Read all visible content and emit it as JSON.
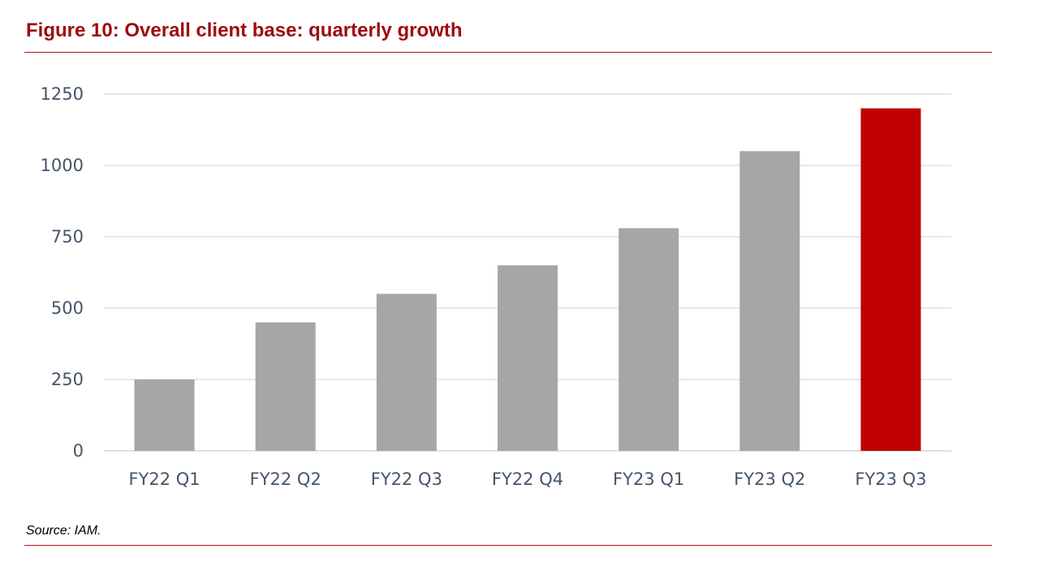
{
  "title": "Figure 10: Overall client base: quarterly growth",
  "source": "Source: IAM.",
  "colors": {
    "title": "#9e0b0f",
    "rule": "#b5121b",
    "bar_default": "#a6a6a6",
    "bar_highlight": "#c00000",
    "grid": "#d9d9d9",
    "tick_text": "#44546a"
  },
  "chart_data": {
    "type": "bar",
    "categories": [
      "FY22 Q1",
      "FY22 Q2",
      "FY22 Q3",
      "FY22 Q4",
      "FY23 Q1",
      "FY23 Q2",
      "FY23 Q3"
    ],
    "values": [
      250,
      450,
      550,
      650,
      780,
      1050,
      1200
    ],
    "highlight_index": 6,
    "title": "",
    "xlabel": "",
    "ylabel": "",
    "ylim": [
      0,
      1250
    ],
    "yticks": [
      0,
      250,
      500,
      750,
      1000,
      1250
    ],
    "grid": true,
    "legend": "none"
  }
}
